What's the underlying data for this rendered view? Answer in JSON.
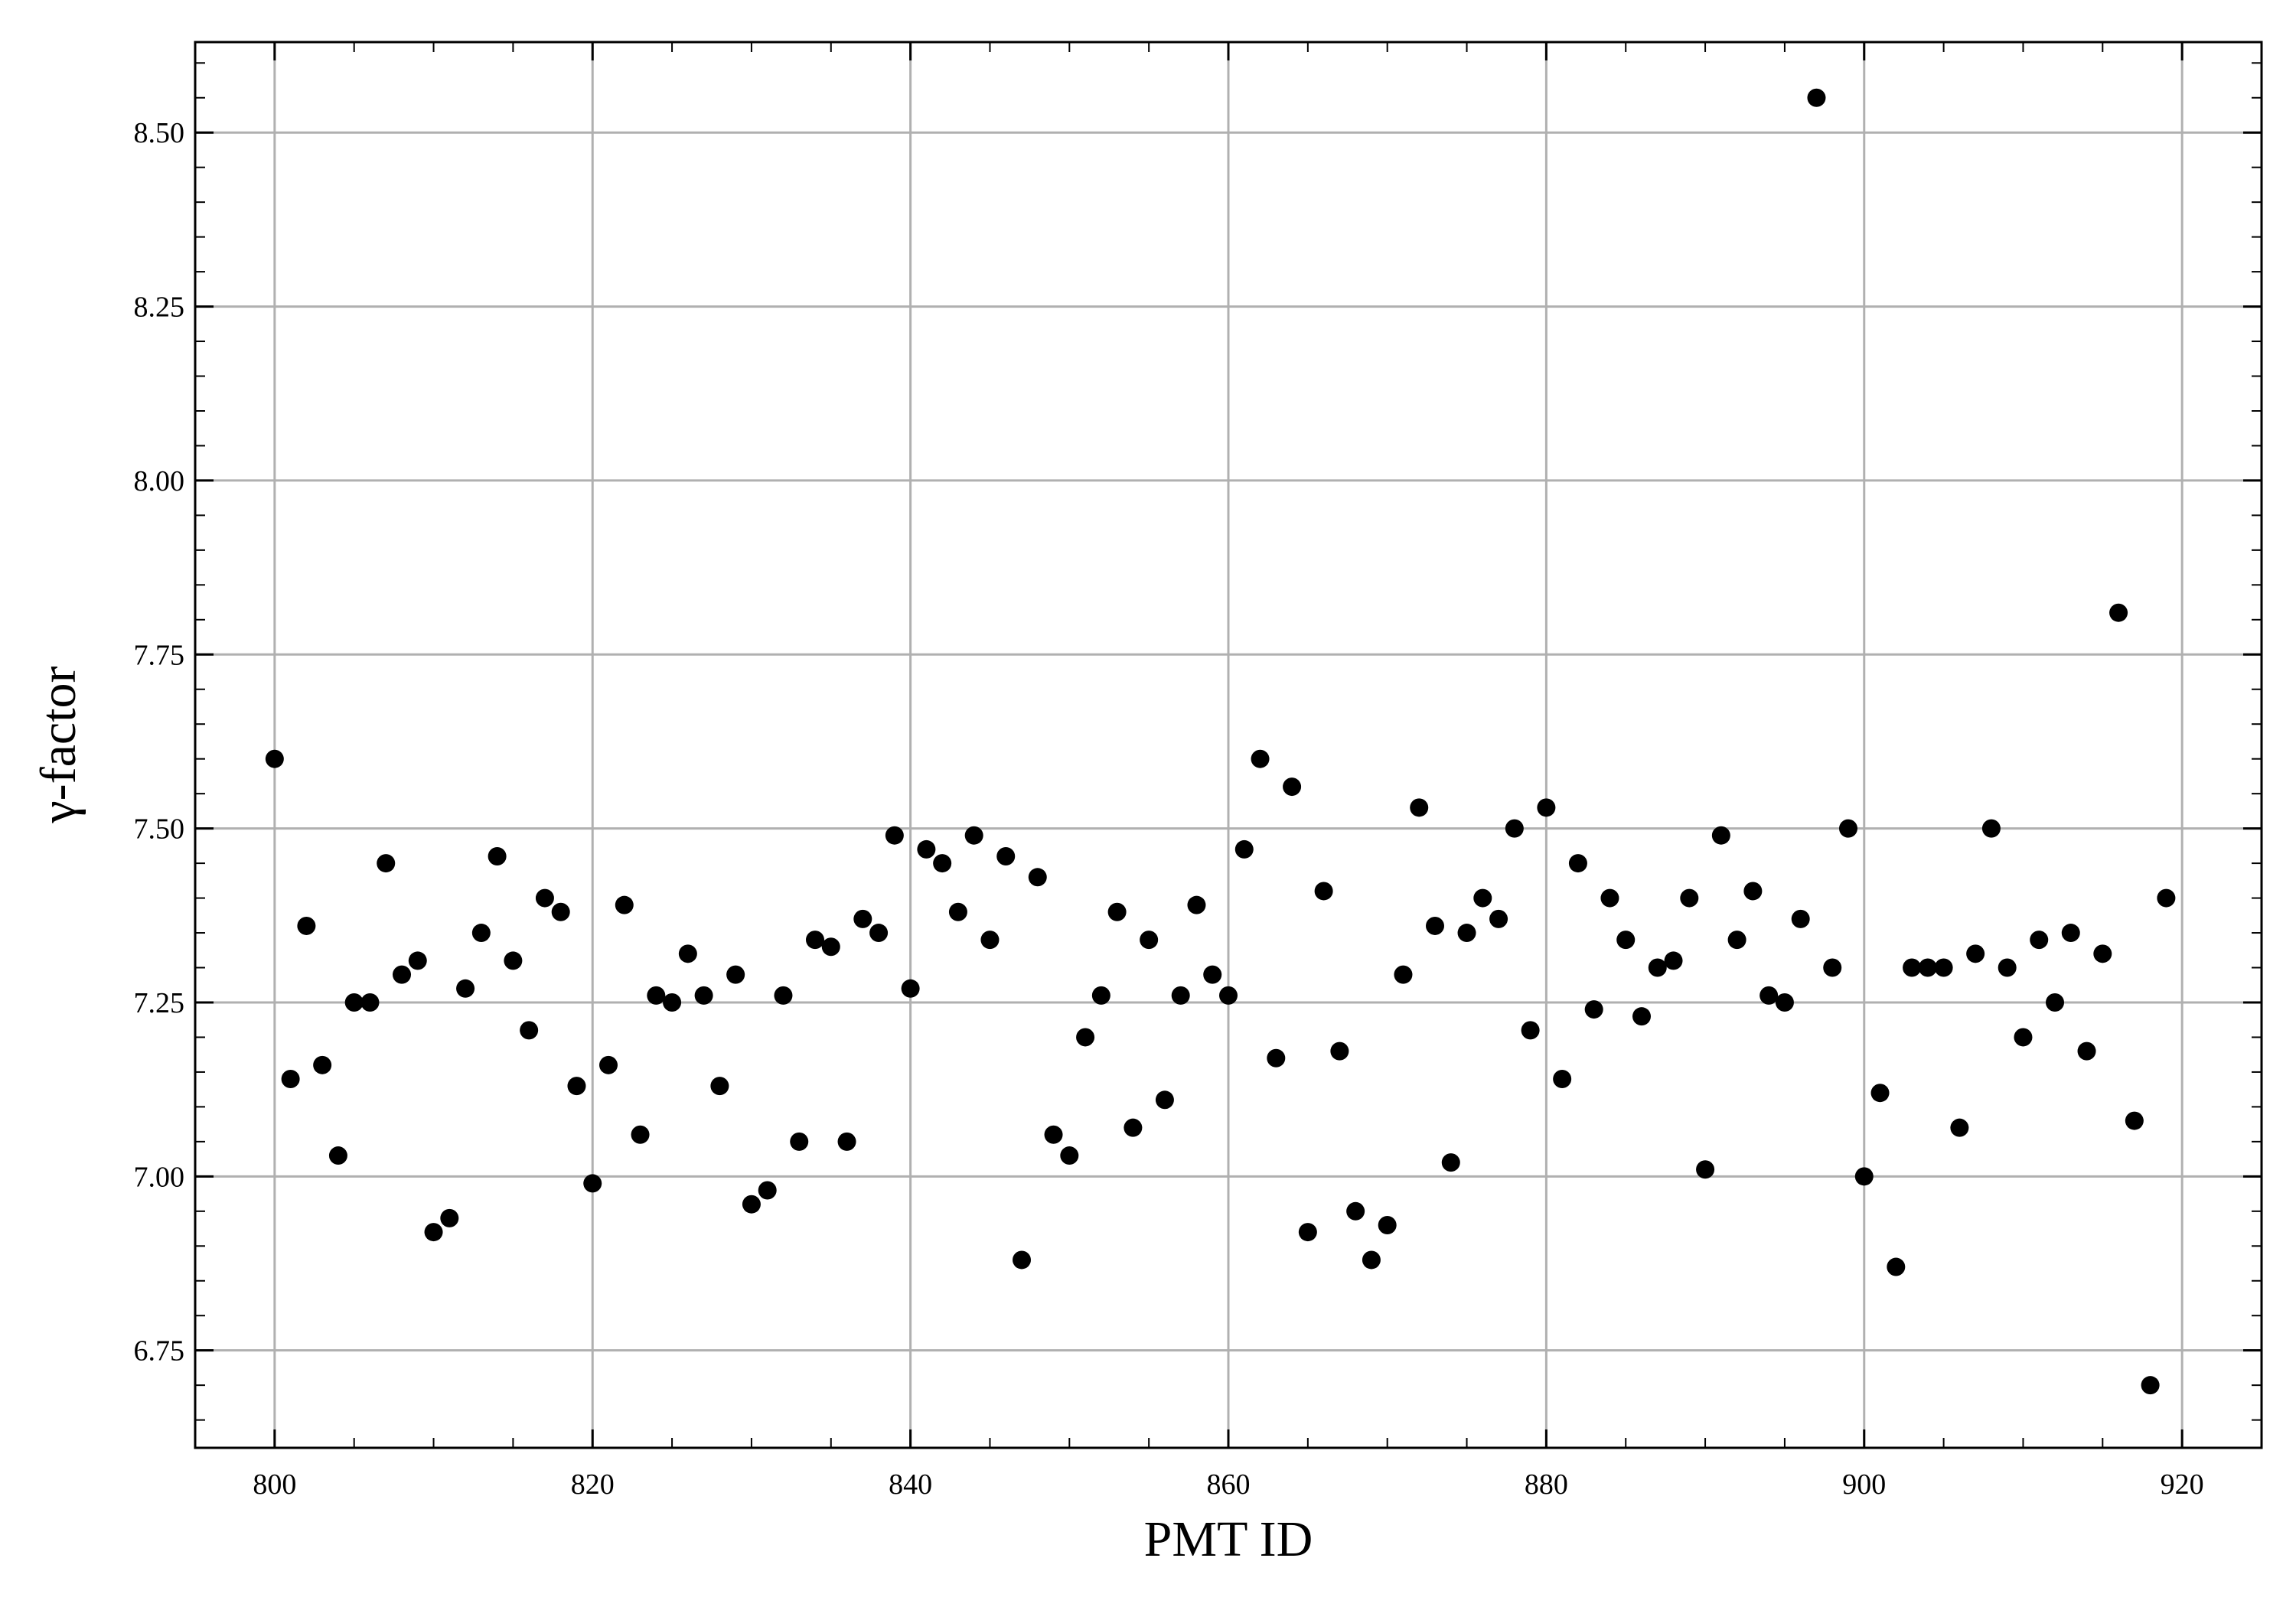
{
  "chart_data": {
    "type": "scatter",
    "title": "",
    "xlabel": "PMT ID",
    "ylabel": "γ-factor",
    "xlim": [
      795,
      925
    ],
    "ylim": [
      6.61,
      8.63
    ],
    "x_ticks": [
      800,
      820,
      840,
      860,
      880,
      900,
      920
    ],
    "y_ticks": [
      6.75,
      7.0,
      7.25,
      7.5,
      7.75,
      8.0,
      8.25,
      8.5
    ],
    "x_tick_labels": [
      "800",
      "820",
      "840",
      "860",
      "880",
      "900",
      "920"
    ],
    "y_tick_labels": [
      "6.75",
      "7.00",
      "7.25",
      "7.50",
      "7.75",
      "8.00",
      "8.25",
      "8.50"
    ],
    "grid": true,
    "marker_color": "#000000",
    "series": [
      {
        "x": [
          800,
          801,
          802,
          803,
          804,
          805,
          806,
          807,
          808,
          809,
          810,
          811,
          812,
          813,
          814,
          815,
          816,
          817,
          818,
          819,
          820,
          821,
          822,
          823,
          824,
          825,
          826,
          827,
          828,
          829,
          830,
          831,
          832,
          833,
          834,
          835,
          836,
          837,
          838,
          839,
          840,
          841,
          842,
          843,
          844,
          845,
          846,
          847,
          848,
          849,
          850,
          851,
          852,
          853,
          854,
          855,
          856,
          857,
          858,
          859,
          860,
          861,
          862,
          863,
          864,
          865,
          866,
          867,
          868,
          869,
          870,
          871,
          872,
          873,
          874,
          875,
          876,
          877,
          878,
          879,
          880,
          881,
          882,
          883,
          884,
          885,
          886,
          887,
          888,
          889,
          890,
          891,
          892,
          893,
          894,
          895,
          896,
          897,
          898,
          899,
          900,
          901,
          902,
          903,
          904,
          905,
          906,
          907,
          908,
          909,
          910,
          911,
          912,
          913,
          914,
          915,
          916,
          917,
          918,
          919
        ],
        "y": [
          7.6,
          7.14,
          7.36,
          7.16,
          7.03,
          7.25,
          7.25,
          7.45,
          7.29,
          7.31,
          6.92,
          6.94,
          7.27,
          7.35,
          7.46,
          7.31,
          7.21,
          7.4,
          7.38,
          7.13,
          6.99,
          7.16,
          7.39,
          7.06,
          7.26,
          7.25,
          7.32,
          7.26,
          7.13,
          7.29,
          6.96,
          6.98,
          7.26,
          7.05,
          7.34,
          7.33,
          7.05,
          7.37,
          7.35,
          7.49,
          7.27,
          7.47,
          7.45,
          7.38,
          7.49,
          7.34,
          7.46,
          6.88,
          7.43,
          7.06,
          7.03,
          7.2,
          7.26,
          7.38,
          7.07,
          7.34,
          7.11,
          7.26,
          7.39,
          7.29,
          7.26,
          7.47,
          7.6,
          7.17,
          7.56,
          6.92,
          7.41,
          7.18,
          6.95,
          6.88,
          6.93,
          7.29,
          7.53,
          7.36,
          7.02,
          7.35,
          7.4,
          7.37,
          7.5,
          7.21,
          7.53,
          7.14,
          7.45,
          7.24,
          7.4,
          7.34,
          7.23,
          7.3,
          7.31,
          7.4,
          7.01,
          7.49,
          7.34,
          7.41,
          7.26,
          7.25,
          7.37,
          8.55,
          7.3,
          7.5,
          7.0,
          7.12,
          6.87,
          7.3,
          7.3,
          7.3,
          7.07,
          7.32,
          7.5,
          7.3,
          7.2,
          7.34,
          7.25,
          7.35,
          7.18,
          7.32,
          7.81,
          7.08,
          6.7,
          7.4
        ]
      }
    ]
  }
}
